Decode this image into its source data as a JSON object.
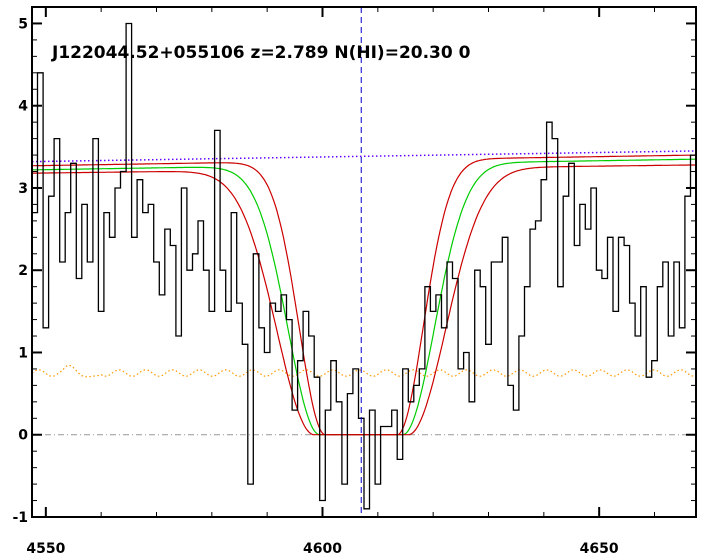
{
  "chart_data": {
    "type": "line",
    "title": "J122044.52+055106 z=2.789 N(HI)=20.30 0",
    "xlim": [
      4547.5,
      4667.5
    ],
    "ylim": [
      -1,
      5.2
    ],
    "x_ticks": [
      4550,
      4600,
      4650
    ],
    "y_ticks": [
      -1,
      0,
      1,
      2,
      3,
      4,
      5
    ],
    "grid": false,
    "legend": "none",
    "colors": {
      "flux": "#000000",
      "model": "#00cc00",
      "bounds": "#cc0000",
      "continuum": "#6600ff",
      "error": "#ff9900",
      "marker": "#0000cc",
      "zero": "#999999"
    },
    "marker_x": 4607,
    "series": [
      {
        "kind": "histogram",
        "x": [
          4547.5,
          4548.5,
          4549.5,
          4550.5,
          4551.5,
          4552.5,
          4553.5,
          4554.5,
          4555.5,
          4556.5,
          4557.5,
          4558.5,
          4559.5,
          4560.5,
          4561.5,
          4562.5,
          4563.5,
          4564.5,
          4565.5,
          4566.5,
          4567.5,
          4568.5,
          4569.5,
          4570.5,
          4571.5,
          4572.5,
          4573.5,
          4574.5,
          4575.5,
          4576.5,
          4577.5,
          4578.5,
          4579.5,
          4580.5,
          4581.5,
          4582.5,
          4583.5,
          4584.5,
          4585.5,
          4586.5,
          4587.5,
          4588.5,
          4589.5,
          4590.5,
          4591.5,
          4592.5,
          4593.5,
          4594.5,
          4595.5,
          4596.5,
          4597.5,
          4598.5,
          4599.5,
          4600.5,
          4601.5,
          4602.5,
          4603.5,
          4604.5,
          4605.5,
          4606.5,
          4607.5,
          4608.5,
          4609.5,
          4610.5,
          4611.5,
          4612.5,
          4613.5,
          4614.5,
          4615.5,
          4616.5,
          4617.5,
          4618.5,
          4619.5,
          4620.5,
          4621.5,
          4622.5,
          4623.5,
          4624.5,
          4625.5,
          4626.5,
          4627.5,
          4628.5,
          4629.5,
          4630.5,
          4631.5,
          4632.5,
          4633.5,
          4634.5,
          4635.5,
          4636.5,
          4637.5,
          4638.5,
          4639.5,
          4640.5,
          4641.5,
          4642.5,
          4643.5,
          4644.5,
          4645.5,
          4646.5,
          4647.5,
          4648.5,
          4649.5,
          4650.5,
          4651.5,
          4652.5,
          4653.5,
          4654.5,
          4655.5,
          4656.5,
          4657.5,
          4658.5,
          4659.5,
          4660.5,
          4661.5,
          4662.5,
          4663.5,
          4664.5,
          4665.5,
          4666.5
        ],
        "y": [
          2.7,
          4.4,
          1.3,
          2.9,
          3.6,
          2.1,
          2.7,
          3.3,
          1.9,
          2.8,
          2.1,
          3.6,
          1.5,
          2.7,
          2.4,
          3.0,
          3.2,
          5.0,
          2.4,
          3.1,
          2.7,
          2.8,
          2.1,
          1.7,
          2.5,
          2.3,
          1.2,
          3.0,
          2.0,
          2.2,
          2.6,
          2.0,
          1.5,
          3.7,
          2.0,
          1.5,
          2.7,
          1.6,
          1.1,
          -0.6,
          2.2,
          1.3,
          1.0,
          1.6,
          1.5,
          1.7,
          1.4,
          0.3,
          0.9,
          1.5,
          1.2,
          0.7,
          -0.8,
          0.3,
          0.9,
          0.4,
          -0.6,
          0.5,
          0.8,
          0.2,
          -0.9,
          0.3,
          -0.6,
          0.1,
          0.1,
          0.3,
          -0.3,
          0.8,
          0.4,
          0.6,
          0.8,
          1.8,
          1.5,
          1.7,
          1.3,
          2.1,
          1.9,
          0.8,
          1.0,
          0.4,
          2.0,
          1.8,
          1.1,
          2.1,
          2.1,
          2.4,
          0.6,
          0.3,
          1.2,
          1.8,
          2.5,
          2.6,
          3.1,
          3.8,
          3.6,
          1.8,
          2.9,
          3.3,
          2.3,
          2.8,
          2.5,
          3.0,
          2.0,
          1.9,
          2.4,
          1.5,
          2.4,
          2.3,
          1.6,
          1.2,
          1.8,
          0.7,
          0.9,
          1.8,
          2.1,
          1.2,
          2.1,
          1.3,
          2.9,
          3.4
        ]
      },
      {
        "kind": "model",
        "center": 4607,
        "width": 7.5,
        "wing_scale": 8.5,
        "continuum_start": 3.22,
        "continuum_end": 3.35
      },
      {
        "kind": "model-lower",
        "center": 4607,
        "width": 8.5,
        "wing_scale": 10.0,
        "continuum_start": 3.18,
        "continuum_end": 3.28
      },
      {
        "kind": "model-upper",
        "center": 4607,
        "width": 6.5,
        "wing_scale": 7.0,
        "continuum_start": 3.27,
        "continuum_end": 3.4
      },
      {
        "kind": "continuum-dotted",
        "y_start": 3.32,
        "y_end": 3.45
      },
      {
        "kind": "error-dotted",
        "y": 0.75
      }
    ]
  }
}
